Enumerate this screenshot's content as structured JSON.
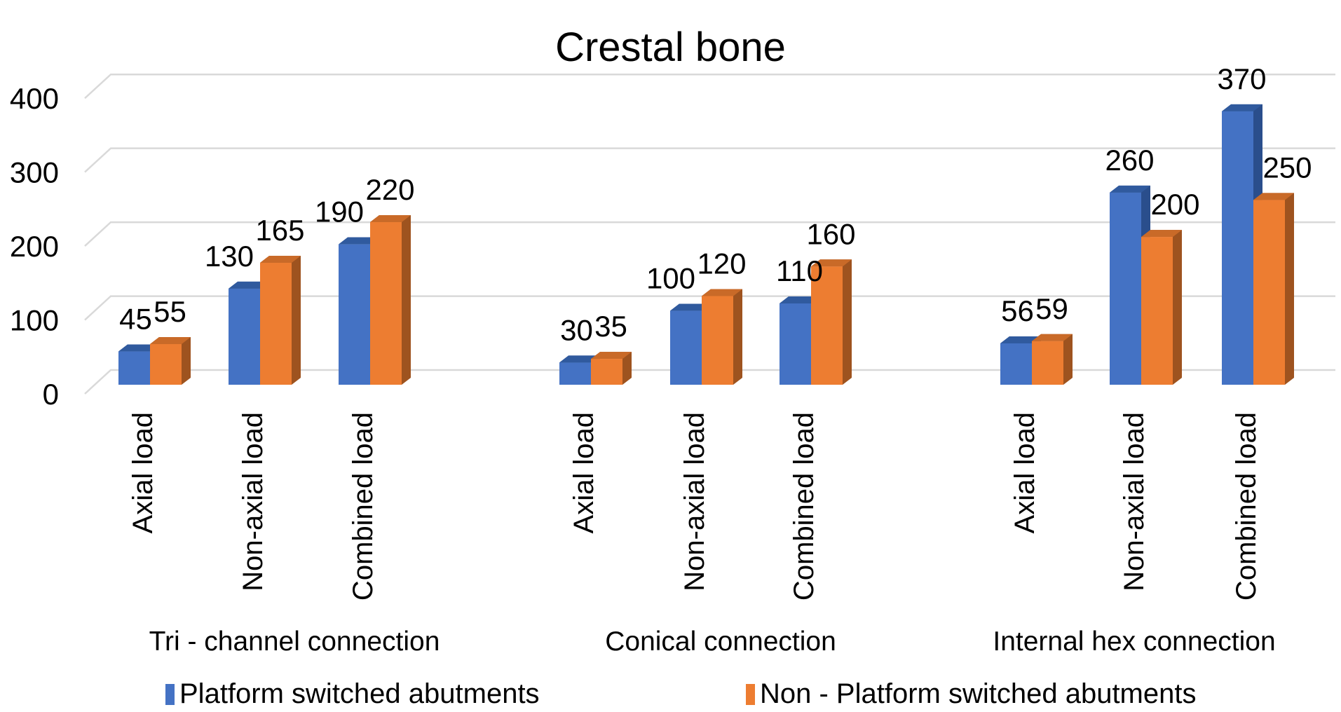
{
  "title": "Crestal bone",
  "colors": {
    "series1_front": "#4472C4",
    "series1_top": "#305A9E",
    "series1_side": "#2A4E8C",
    "series2_front": "#ED7D31",
    "series2_top": "#C96A28",
    "series2_side": "#9E531F",
    "gridline": "#D9D9D9",
    "text": "#000000"
  },
  "chart_data": {
    "type": "bar",
    "subtype": "3d-clustered-column",
    "title": "Crestal bone",
    "groups": [
      "Tri - channel connection",
      "Conical connection",
      "Internal hex connection"
    ],
    "categories": [
      "Axial load",
      "Non-axial load",
      "Combined load"
    ],
    "series": [
      {
        "name": "Platform switched abutments",
        "color": "#4472C4",
        "values": [
          45,
          130,
          190,
          30,
          100,
          110,
          56,
          260,
          370
        ]
      },
      {
        "name": "Non - Platform switched abutments",
        "color": "#ED7D31",
        "values": [
          55,
          165,
          220,
          35,
          120,
          160,
          59,
          200,
          250
        ]
      }
    ],
    "value_labels_shown": true,
    "yticks": [
      0,
      100,
      200,
      300,
      400
    ],
    "ylim": [
      0,
      400
    ],
    "grid": true,
    "legend_position": "bottom",
    "xlabel": "",
    "ylabel": ""
  }
}
